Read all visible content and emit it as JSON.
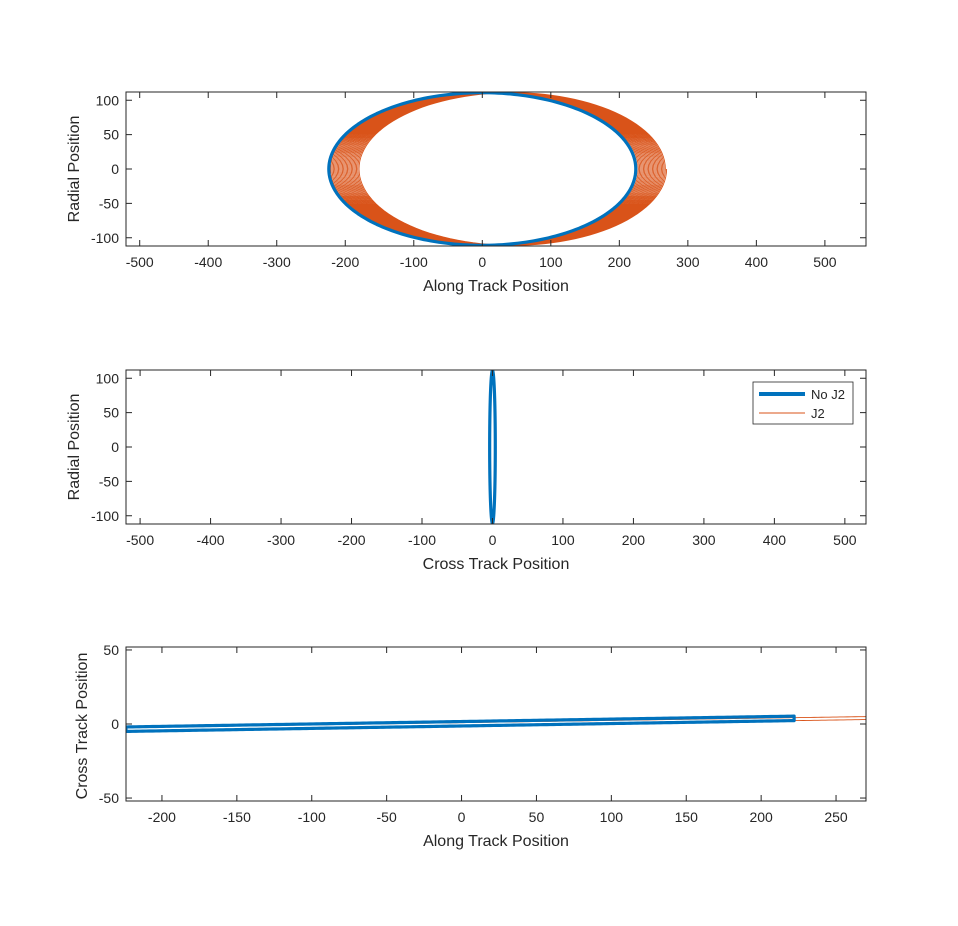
{
  "chart_data": [
    {
      "type": "line",
      "xlabel": "Along Track Position",
      "ylabel": "Radial Position",
      "xlim": [
        -520,
        560
      ],
      "ylim": [
        -112,
        112
      ],
      "xticks": [
        -500,
        -400,
        -300,
        -200,
        -100,
        0,
        100,
        200,
        300,
        400,
        500
      ],
      "yticks": [
        -100,
        -50,
        0,
        50,
        100
      ],
      "xtick_labels": [
        "-500",
        "-400",
        "-300",
        "-200",
        "-100",
        "0",
        "100",
        "200",
        "300",
        "400",
        "500"
      ],
      "ytick_labels": [
        "-100",
        "-50",
        "0",
        "50",
        "100"
      ],
      "grid": false,
      "series": [
        {
          "key": "j2",
          "shape": "drifting-ellipses",
          "center_x_start": 0,
          "center_x_end": 45,
          "semi_axis_x": 224,
          "semi_axis_y": 111,
          "loops": 24
        },
        {
          "key": "noj2",
          "shape": "ellipse",
          "center_x": 0,
          "semi_axis_x": 224,
          "semi_axis_y": 111
        }
      ]
    },
    {
      "type": "line",
      "xlabel": "Cross Track Position",
      "ylabel": "Radial Position",
      "xlim": [
        -520,
        530
      ],
      "ylim": [
        -112,
        112
      ],
      "xticks": [
        -500,
        -400,
        -300,
        -200,
        -100,
        0,
        100,
        200,
        300,
        400,
        500
      ],
      "yticks": [
        -100,
        -50,
        0,
        50,
        100
      ],
      "xtick_labels": [
        "-500",
        "-400",
        "-300",
        "-200",
        "-100",
        "0",
        "100",
        "200",
        "300",
        "400",
        "500"
      ],
      "ytick_labels": [
        "-100",
        "-50",
        "0",
        "50",
        "100"
      ],
      "grid": false,
      "legend": {
        "location": "top-right",
        "entries": [
          {
            "key": "noj2",
            "label": "No J2"
          },
          {
            "key": "j2",
            "label": "J2"
          }
        ]
      },
      "series": [
        {
          "key": "j2",
          "shape": "ellipse",
          "center_x": 0,
          "semi_axis_x": 4,
          "semi_axis_y": 111
        },
        {
          "key": "noj2",
          "shape": "ellipse",
          "center_x": 0,
          "semi_axis_x": 4,
          "semi_axis_y": 111
        }
      ]
    },
    {
      "type": "line",
      "xlabel": "Along Track Position",
      "ylabel": "Cross Track Position",
      "xlim": [
        -224,
        270
      ],
      "ylim": [
        -52,
        52
      ],
      "xticks": [
        -200,
        -150,
        -100,
        -50,
        0,
        50,
        100,
        150,
        200,
        250
      ],
      "yticks": [
        -50,
        0,
        50
      ],
      "xtick_labels": [
        "-200",
        "-150",
        "-100",
        "-50",
        "0",
        "50",
        "100",
        "150",
        "200",
        "250"
      ],
      "ytick_labels": [
        "-50",
        "0",
        "50"
      ],
      "grid": false,
      "series": [
        {
          "key": "j2",
          "shape": "thin-loop",
          "x_start": -224,
          "x_end": 270,
          "y_start": -3.5,
          "y_end": 4,
          "half_width": 1
        },
        {
          "key": "noj2",
          "shape": "thin-loop",
          "x_start": -224,
          "x_end": 222,
          "y_start": -3.5,
          "y_end": 3.8,
          "half_width": 1.5
        }
      ]
    }
  ],
  "colors": {
    "noj2": "#0072BD",
    "j2": "#D95319",
    "axis": "#262626"
  }
}
